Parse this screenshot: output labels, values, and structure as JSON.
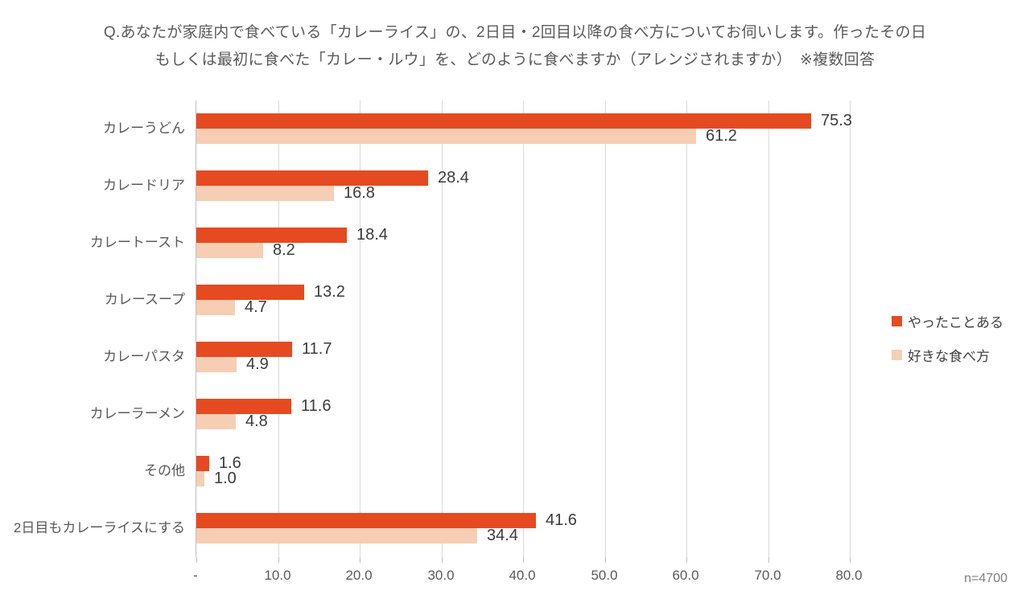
{
  "title": {
    "line1": "Q.あなたが家庭内で食べている「カレーライス」の、2日目・2回目以降の食べ方についてお伺いします。作ったその日",
    "line2": "もしくは最初に食べた「カレー・ルウ」を、どのように食べますか（アレンジされますか）　※複数回答"
  },
  "note": "n=4700",
  "colors": {
    "series1": "#e64a20",
    "series2": "#f5ceb4",
    "gridline": "#d9d9d9",
    "axis_line": "#bfbfbf",
    "title_text": "#595959",
    "value_label_text": "#3b3b3b",
    "note_text": "#7f7f7f"
  },
  "chart_data": {
    "type": "bar",
    "orientation": "horizontal",
    "title": "Q.あなたが家庭内で食べている「カレーライス」の、2日目・2回目以降の食べ方についてお伺いします。作ったその日もしくは最初に食べた「カレー・ルウ」を、どのように食べますか（アレンジされますか）　※複数回答",
    "categories": [
      "カレーうどん",
      "カレードリア",
      "カレートースト",
      "カレースープ",
      "カレーパスタ",
      "カレーラーメン",
      "その他",
      "2日目もカレーライスにする"
    ],
    "series": [
      {
        "name": "やったことある",
        "color": "#e64a20",
        "values": [
          75.3,
          28.4,
          18.4,
          13.2,
          11.7,
          11.6,
          1.6,
          41.6
        ]
      },
      {
        "name": "好きな食べ方",
        "color": "#f5ceb4",
        "values": [
          61.2,
          16.8,
          8.2,
          4.7,
          4.9,
          4.8,
          1.0,
          34.4
        ]
      }
    ],
    "xlim": [
      0,
      80
    ],
    "x_tick_labels": [
      "-",
      "10.0",
      "20.0",
      "30.0",
      "40.0",
      "50.0",
      "60.0",
      "70.0",
      "80.0"
    ],
    "x_tick_values": [
      0,
      10,
      20,
      30,
      40,
      50,
      60,
      70,
      80
    ],
    "grid": "vertical-only",
    "legend_position": "right",
    "data_labels": "outside-end",
    "sample_note": "n=4700"
  }
}
